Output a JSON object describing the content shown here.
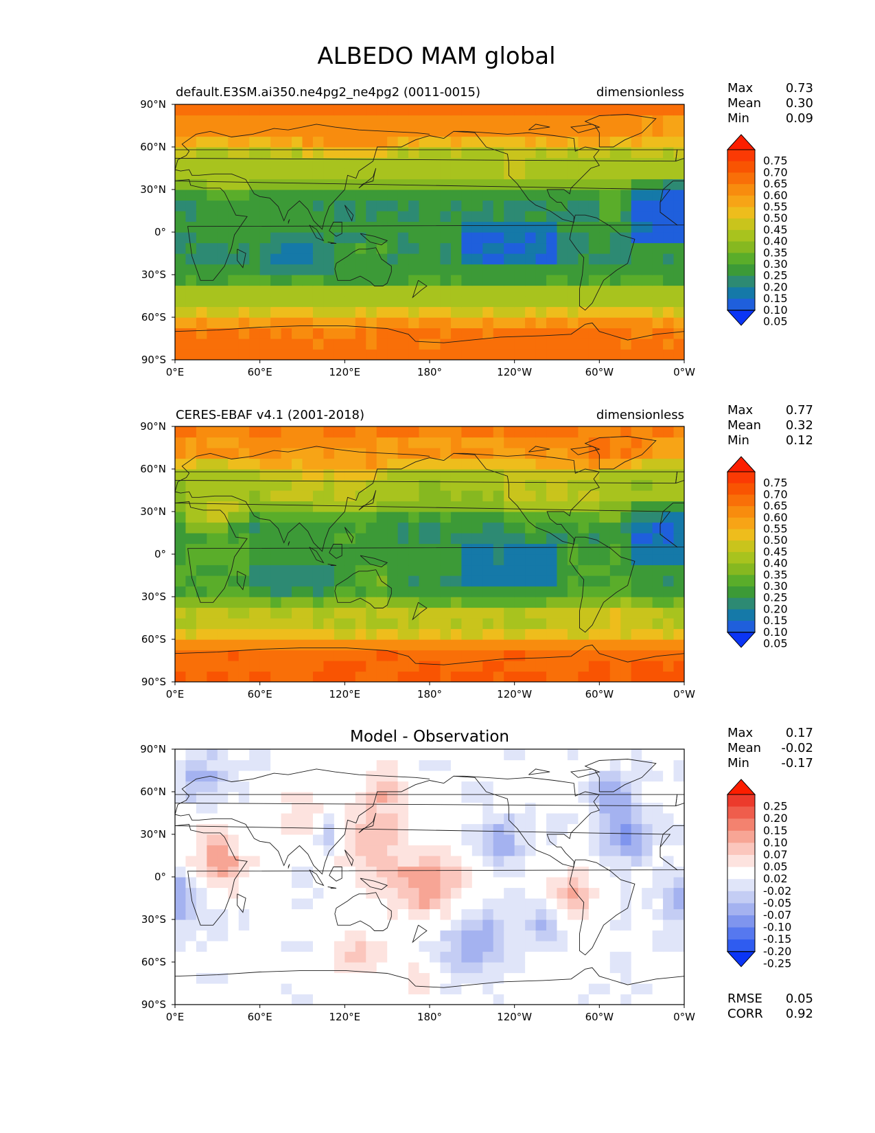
{
  "title": "ALBEDO MAM global",
  "x_ticks": [
    "0°E",
    "60°E",
    "120°E",
    "180°",
    "120°W",
    "60°W",
    "0°W"
  ],
  "y_ticks": [
    "90°N",
    "60°N",
    "30°N",
    "0°",
    "30°S",
    "60°S",
    "90°S"
  ],
  "colors": {
    "seq": [
      "#0b35f5",
      "#1f5fdc",
      "#1579a8",
      "#2d8a73",
      "#3c9a37",
      "#5aad2a",
      "#86b820",
      "#a8c31e",
      "#c9c41c",
      "#eebd1c",
      "#f7a416",
      "#f88c0e",
      "#f96f08",
      "#f95402",
      "#fb3a04",
      "#fc1e00"
    ],
    "div": [
      "#0b35f5",
      "#2f5cf0",
      "#5678ef",
      "#7f95ee",
      "#a4b2f0",
      "#c4cdf4",
      "#e0e5f9",
      "#ffffff",
      "#fde3df",
      "#fbc6bd",
      "#f7a595",
      "#f3826f",
      "#ef5d4c",
      "#ec3a2c",
      "#fc1e00"
    ]
  },
  "panels": [
    {
      "left_title": "default.E3SM.ai350.ne4pg2_ne4pg2 (0011-0015)",
      "center_title": "",
      "right_title": "dimensionless",
      "stats": [
        {
          "label": "Max",
          "value": "0.73"
        },
        {
          "label": "Mean",
          "value": "0.30"
        },
        {
          "label": "Min",
          "value": "0.09"
        }
      ],
      "colorbar_labels": [
        "0.75",
        "0.70",
        "0.65",
        "0.60",
        "0.55",
        "0.50",
        "0.45",
        "0.40",
        "0.35",
        "0.30",
        "0.25",
        "0.20",
        "0.15",
        "0.10",
        "0.05"
      ],
      "bottom_stats": []
    },
    {
      "left_title": "CERES-EBAF v4.1 (2001-2018)",
      "center_title": "",
      "right_title": "dimensionless",
      "stats": [
        {
          "label": "Max",
          "value": "0.77"
        },
        {
          "label": "Mean",
          "value": "0.32"
        },
        {
          "label": "Min",
          "value": "0.12"
        }
      ],
      "colorbar_labels": [
        "0.75",
        "0.70",
        "0.65",
        "0.60",
        "0.55",
        "0.50",
        "0.45",
        "0.40",
        "0.35",
        "0.30",
        "0.25",
        "0.20",
        "0.15",
        "0.10",
        "0.05"
      ],
      "bottom_stats": []
    },
    {
      "left_title": "",
      "center_title": "Model - Observation",
      "right_title": "",
      "stats": [
        {
          "label": "Max",
          "value": "0.17"
        },
        {
          "label": "Mean",
          "value": "-0.02"
        },
        {
          "label": "Min",
          "value": "-0.17"
        }
      ],
      "colorbar_labels": [
        "0.25",
        "0.20",
        "0.15",
        "0.10",
        "0.07",
        "0.05",
        "0.02",
        "-0.02",
        "-0.05",
        "-0.07",
        "-0.10",
        "-0.15",
        "-0.20",
        "-0.25"
      ],
      "bottom_stats": [
        {
          "label": "RMSE",
          "value": "0.05"
        },
        {
          "label": "CORR",
          "value": "0.92"
        }
      ]
    }
  ],
  "chart_data": [
    {
      "type": "heatmap",
      "title": "default.E3SM.ai350.ne4pg2_ne4pg2 (0011-0015)",
      "units": "dimensionless",
      "variable": "ALBEDO",
      "season": "MAM",
      "xlim": [
        0,
        360
      ],
      "ylim": [
        -90,
        90
      ],
      "levels": [
        0.05,
        0.1,
        0.15,
        0.2,
        0.25,
        0.3,
        0.35,
        0.4,
        0.45,
        0.5,
        0.55,
        0.6,
        0.65,
        0.7,
        0.75
      ],
      "lat": [
        -85,
        -75,
        -65,
        -55,
        -45,
        -35,
        -25,
        -15,
        -5,
        5,
        15,
        25,
        35,
        45,
        55,
        65,
        75,
        85
      ],
      "zonal_mean": [
        0.66,
        0.64,
        0.55,
        0.45,
        0.38,
        0.25,
        0.22,
        0.2,
        0.2,
        0.22,
        0.2,
        0.22,
        0.32,
        0.38,
        0.4,
        0.5,
        0.58,
        0.62
      ],
      "max": 0.73,
      "mean": 0.3,
      "min": 0.09
    },
    {
      "type": "heatmap",
      "title": "CERES-EBAF v4.1 (2001-2018)",
      "units": "dimensionless",
      "xlim": [
        0,
        360
      ],
      "ylim": [
        -90,
        90
      ],
      "levels": [
        0.05,
        0.1,
        0.15,
        0.2,
        0.25,
        0.3,
        0.35,
        0.4,
        0.45,
        0.5,
        0.55,
        0.6,
        0.65,
        0.7,
        0.75
      ],
      "lat": [
        -85,
        -75,
        -65,
        -55,
        -45,
        -35,
        -25,
        -15,
        -5,
        5,
        15,
        25,
        35,
        45,
        55,
        65,
        75,
        85
      ],
      "zonal_mean": [
        0.68,
        0.66,
        0.58,
        0.46,
        0.4,
        0.3,
        0.22,
        0.21,
        0.22,
        0.22,
        0.2,
        0.24,
        0.32,
        0.36,
        0.38,
        0.46,
        0.55,
        0.6
      ],
      "max": 0.77,
      "mean": 0.32,
      "min": 0.12
    },
    {
      "type": "heatmap",
      "title": "Model - Observation",
      "xlim": [
        0,
        360
      ],
      "ylim": [
        -90,
        90
      ],
      "levels": [
        -0.25,
        -0.2,
        -0.15,
        -0.1,
        -0.07,
        -0.05,
        -0.02,
        0.02,
        0.05,
        0.07,
        0.1,
        0.15,
        0.2,
        0.25
      ],
      "max": 0.17,
      "mean": -0.02,
      "min": -0.17,
      "rmse": 0.05,
      "corr": 0.92
    }
  ]
}
